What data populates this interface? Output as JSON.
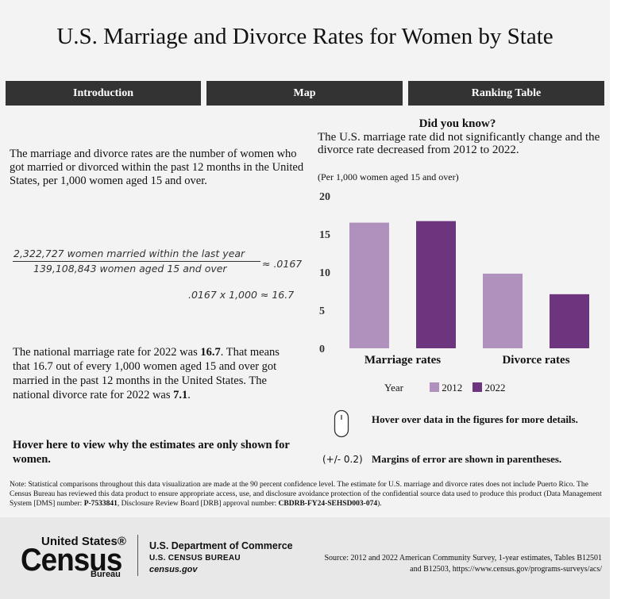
{
  "title": "U.S. Marriage and Divorce Rates for Women by State",
  "tabs": [
    "Introduction",
    "Map",
    "Ranking Table"
  ],
  "intro_text": "The marriage and divorce rates are the number of women who got married or divorced within the past 12 months in the United States, per 1,000 women aged 15 and over.",
  "formula": {
    "numerator": "2,322,727 women married within the last year",
    "denominator": "139,108,843 women aged 15 and over",
    "approx": "≈ .0167",
    "calc": ".0167 x 1,000 ≈ 16.7"
  },
  "national": {
    "p1": "The national marriage rate for 2022 was ",
    "v1": "16.7",
    "p2": ". That means that 16.7 out of every 1,000 women aged 15 and over got married in the past 12 months in the United States. The national divorce rate for 2022 was ",
    "v2": "7.1",
    "p3": "."
  },
  "hover_why": "Hover here to view why the estimates are only shown for women.",
  "did_you_know": {
    "title": "Did you know?",
    "text": "The U.S. marriage rate did not significantly change and the divorce rate decreased from 2012 to 2022."
  },
  "per_note": "(Per 1,000 women aged 15 and over)",
  "chart_data": {
    "type": "bar",
    "categories": [
      "Marriage rates",
      "Divorce rates"
    ],
    "series": [
      {
        "name": "2012",
        "values": [
          16.5,
          9.8
        ],
        "color": "#b091bd"
      },
      {
        "name": "2022",
        "values": [
          16.7,
          7.1
        ],
        "color": "#6e357f"
      }
    ],
    "yticks": [
      0,
      5,
      10,
      15,
      20
    ],
    "ylim": [
      0,
      20
    ],
    "legend_title": "Year"
  },
  "hover_note": "Hover over data in the figures for more details.",
  "moe_symbol": "(+/- 0.2)",
  "moe_note": "Margins of error are shown in parentheses.",
  "note": {
    "t1": "Note: Statistical comparisons throughout this data visualization are made at the 90 percent confidence level. The estimate for U.S. marriage and divorce rates does not include Puerto Rico. The Census Bureau has reviewed this data product to ensure appropriate access, use, and disclosure avoidance protection of the confidential source data used to produce this product (Data Management System [DMS] number: ",
    "dms": "P-7533841",
    "t2": ", Disclosure Review Board [DRB] approval number: ",
    "drb": "CBDRB-FY24-SEHSD003-074",
    "t3": ")."
  },
  "footer": {
    "logo_top": "United States®",
    "logo_main": "Census",
    "logo_bottom": "Bureau",
    "dept": "U.S. Department of Commerce",
    "bureau": "U.S. CENSUS BUREAU",
    "site": "census.gov",
    "source": "Source: 2012 and 2022 American Community Survey, 1-year estimates, Tables B12501 and B12503, https://www.census.gov/programs-surveys/acs/"
  }
}
